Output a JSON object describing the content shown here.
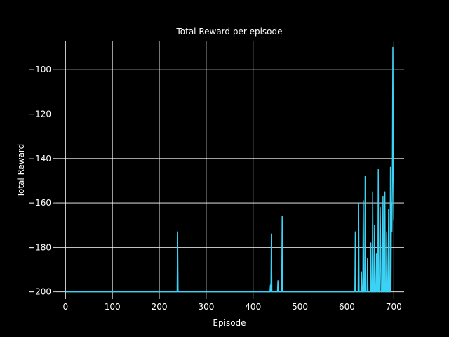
{
  "chart_data": {
    "type": "line",
    "title": "Total Reward per episode",
    "xlabel": "Episode",
    "ylabel": "Total Reward",
    "xlim": [
      -20,
      722
    ],
    "ylim": [
      -202,
      -87
    ],
    "x_ticks": [
      0,
      100,
      200,
      300,
      400,
      500,
      600,
      700
    ],
    "y_ticks": [
      -200,
      -180,
      -160,
      -140,
      -120,
      -100
    ],
    "x_tick_labels": [
      "0",
      "100",
      "200",
      "300",
      "400",
      "500",
      "600",
      "700"
    ],
    "y_tick_labels": [
      "−200",
      "−180",
      "−160",
      "−140",
      "−120",
      "−100"
    ],
    "grid": true,
    "background": "#000000",
    "text_color": "#ffffff",
    "grid_color": "#ffffff",
    "series": [
      {
        "color": "#3cd2f5",
        "points": [
          [
            0,
            -200
          ],
          [
            238,
            -200
          ],
          [
            239,
            -173
          ],
          [
            240,
            -200
          ],
          [
            436,
            -200
          ],
          [
            437,
            -197
          ],
          [
            438,
            -200
          ],
          [
            439,
            -174
          ],
          [
            440,
            -200
          ],
          [
            452,
            -200
          ],
          [
            453,
            -195
          ],
          [
            454,
            -200
          ],
          [
            461,
            -200
          ],
          [
            462,
            -166
          ],
          [
            463,
            -200
          ],
          [
            617,
            -200
          ],
          [
            618,
            -173
          ],
          [
            619,
            -200
          ],
          [
            624,
            -200
          ],
          [
            625,
            -160
          ],
          [
            626,
            -200
          ],
          [
            630,
            -200
          ],
          [
            631,
            -191
          ],
          [
            632,
            -200
          ],
          [
            634,
            -200
          ],
          [
            635,
            -159
          ],
          [
            636,
            -200
          ],
          [
            638,
            -200
          ],
          [
            639,
            -148
          ],
          [
            640,
            -200
          ],
          [
            643,
            -200
          ],
          [
            644,
            -185
          ],
          [
            645,
            -200
          ],
          [
            650,
            -200
          ],
          [
            651,
            -178
          ],
          [
            652,
            -200
          ],
          [
            654,
            -200
          ],
          [
            655,
            -155
          ],
          [
            656,
            -200
          ],
          [
            658,
            -200
          ],
          [
            659,
            -170
          ],
          [
            660,
            -200
          ],
          [
            662,
            -200
          ],
          [
            663,
            -183
          ],
          [
            664,
            -200
          ],
          [
            666,
            -200
          ],
          [
            667,
            -145
          ],
          [
            668,
            -200
          ],
          [
            670,
            -200
          ],
          [
            671,
            -162
          ],
          [
            672,
            -180
          ],
          [
            673,
            -200
          ],
          [
            676,
            -200
          ],
          [
            677,
            -157
          ],
          [
            678,
            -200
          ],
          [
            680,
            -200
          ],
          [
            681,
            -155
          ],
          [
            682,
            -200
          ],
          [
            684,
            -200
          ],
          [
            685,
            -173
          ],
          [
            686,
            -200
          ],
          [
            688,
            -200
          ],
          [
            689,
            -163
          ],
          [
            690,
            -200
          ],
          [
            692,
            -200
          ],
          [
            693,
            -144
          ],
          [
            694,
            -200
          ],
          [
            695,
            -160
          ],
          [
            696,
            -173
          ],
          [
            697,
            -150
          ],
          [
            698,
            -90
          ],
          [
            699,
            -143
          ],
          [
            700,
            -168
          ]
        ]
      }
    ]
  }
}
